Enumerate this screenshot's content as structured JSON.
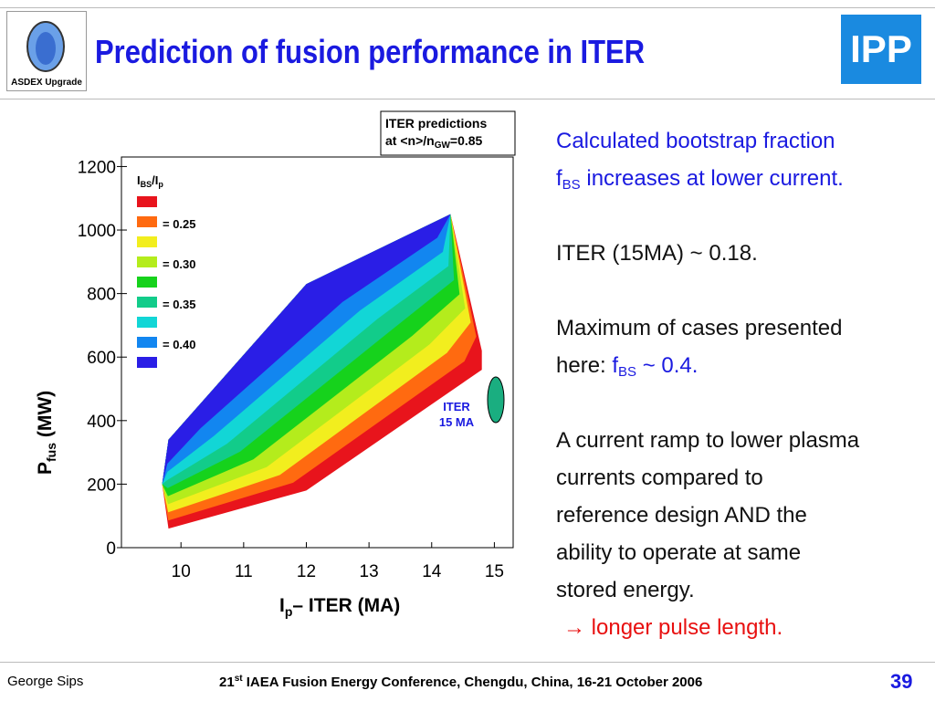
{
  "header": {
    "title": "Prediction of fusion performance in ITER",
    "logo_left": "ASDEX Upgrade",
    "logo_right": "IPP"
  },
  "chart_data": {
    "type": "contour",
    "note": [
      "ITER predictions",
      "at <n>/n",
      "GW",
      "=0.85"
    ],
    "xlabel": [
      "I",
      "p",
      "– ITER (MA)"
    ],
    "ylabel": [
      "P",
      "fus",
      " (MW)"
    ],
    "xlim": [
      9.05,
      15.3
    ],
    "xticks": [
      10,
      11,
      12,
      13,
      14,
      15
    ],
    "ylim": [
      0,
      1230
    ],
    "yticks": [
      0,
      200,
      400,
      600,
      800,
      1000,
      1200
    ],
    "legend_title": [
      "I",
      "BS",
      "/I",
      "p"
    ],
    "colors": [
      "#e8141c",
      "#ff6a10",
      "#f2ee1e",
      "#b4ec1c",
      "#16d21c",
      "#12cc8a",
      "#12d6d6",
      "#1286f0",
      "#2a1ee6"
    ],
    "levels": [
      "= 0.25",
      "= 0.30",
      "= 0.35",
      "= 0.40"
    ],
    "annotation": [
      "ITER",
      "15 MA"
    ]
  },
  "text": {
    "p1": [
      "Calculated bootstrap fraction",
      "f",
      "BS",
      " increases at lower current."
    ],
    "p2": "ITER (15MA) ~ 0.18.",
    "p3": [
      "Maximum of cases presented",
      "here: ",
      "f",
      "BS",
      " ~ 0.4."
    ],
    "p4": [
      "A current ramp to lower plasma",
      "currents compared to",
      "reference design AND the",
      "ability to operate at same",
      "stored energy."
    ],
    "p5": [
      "",
      " longer pulse length."
    ]
  },
  "footer": {
    "author": "George Sips",
    "conf_num": "21",
    "conf_sup": "st",
    "conf": " IAEA Fusion Energy Conference, Chengdu, China, 16-21 October 2006",
    "page": "39"
  }
}
